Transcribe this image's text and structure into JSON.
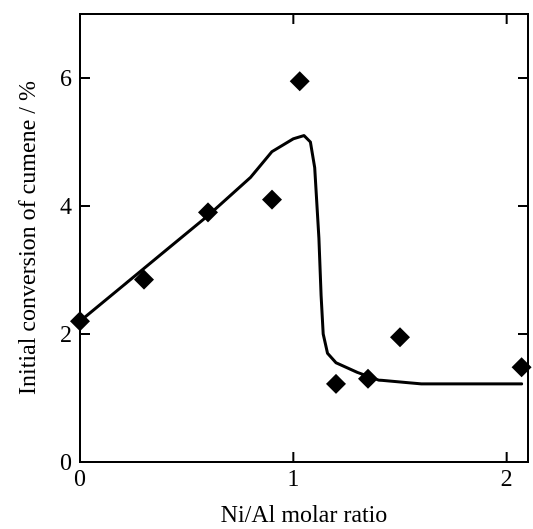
{
  "chart_data": {
    "type": "scatter",
    "xlabel": "Ni/Al molar ratio",
    "ylabel": "Initial conversion of cumene / %",
    "xlim": [
      0,
      2.1
    ],
    "ylim": [
      0,
      7
    ],
    "xticks": [
      0,
      1,
      2
    ],
    "yticks": [
      0,
      2,
      4,
      6
    ],
    "marker": "diamond",
    "series": [
      {
        "points": [
          {
            "x": 0.0,
            "y": 2.2
          },
          {
            "x": 0.3,
            "y": 2.85
          },
          {
            "x": 0.6,
            "y": 3.9
          },
          {
            "x": 0.9,
            "y": 4.1
          },
          {
            "x": 1.03,
            "y": 5.95
          },
          {
            "x": 1.2,
            "y": 1.22
          },
          {
            "x": 1.35,
            "y": 1.3
          },
          {
            "x": 1.5,
            "y": 1.95
          },
          {
            "x": 2.07,
            "y": 1.48
          }
        ]
      }
    ],
    "fit_curve": {
      "x": [
        0.0,
        0.2,
        0.4,
        0.6,
        0.8,
        0.9,
        1.0,
        1.05,
        1.08,
        1.1,
        1.12,
        1.13,
        1.14,
        1.16,
        1.2,
        1.3,
        1.4,
        1.6,
        1.8,
        2.07
      ],
      "y": [
        2.2,
        2.75,
        3.3,
        3.85,
        4.45,
        4.85,
        5.05,
        5.1,
        5.0,
        4.6,
        3.5,
        2.6,
        2.0,
        1.7,
        1.55,
        1.4,
        1.28,
        1.22,
        1.22,
        1.22
      ]
    },
    "grid": false
  }
}
